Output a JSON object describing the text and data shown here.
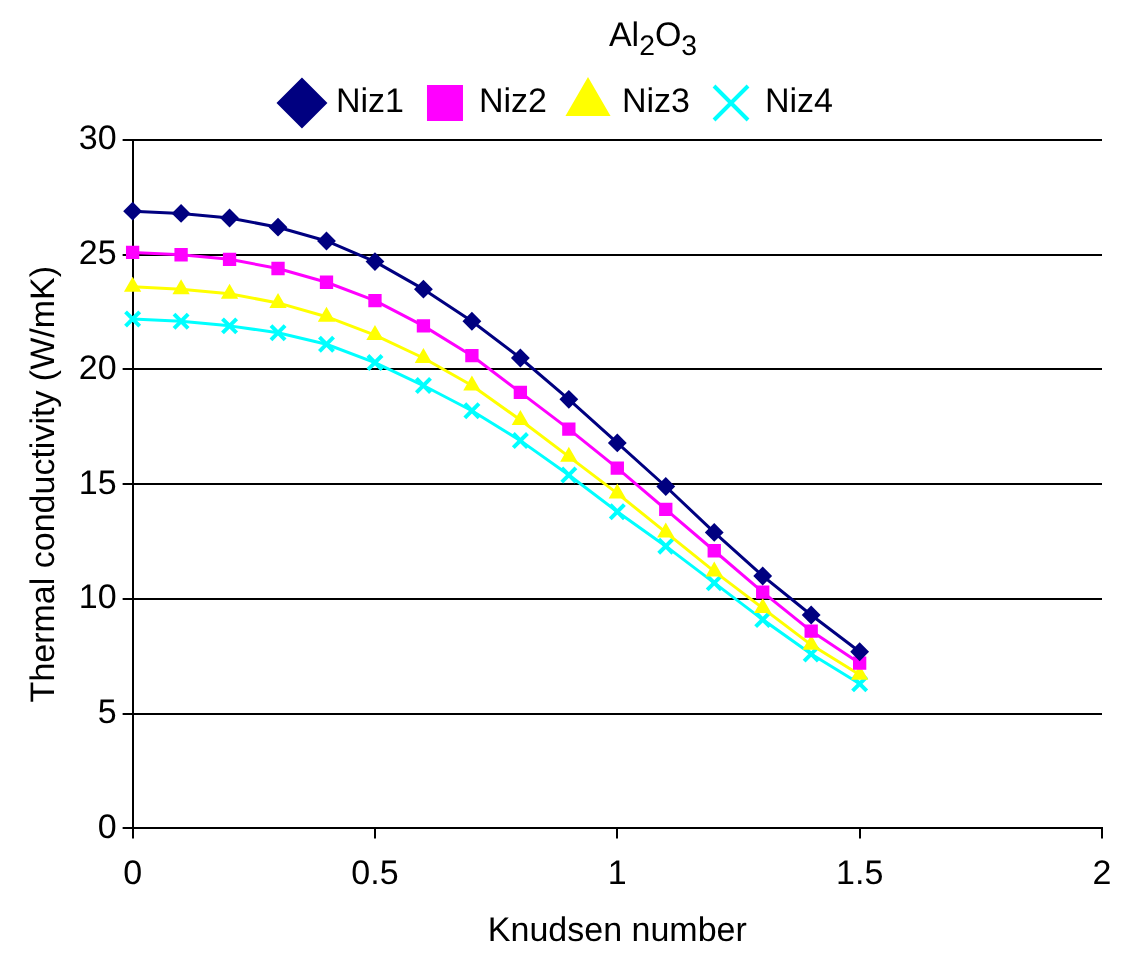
{
  "chart_data": {
    "type": "line",
    "title": "Al$_{2}$O$_{3}$",
    "xlabel": "Knudsen number",
    "ylabel": "Thermal conductivity (W/mK)",
    "x": [
      0,
      0.1,
      0.2,
      0.3,
      0.4,
      0.5,
      0.6,
      0.7,
      0.8,
      0.9,
      1.0,
      1.1,
      1.2,
      1.3,
      1.4,
      1.5
    ],
    "series": [
      {
        "name": "Niz1",
        "color": "#000080",
        "marker": "diamond",
        "values": [
          26.9,
          26.8,
          26.6,
          26.2,
          25.6,
          24.7,
          23.5,
          22.1,
          20.5,
          18.7,
          16.8,
          14.9,
          12.9,
          11.0,
          9.3,
          7.7
        ]
      },
      {
        "name": "Niz2",
        "color": "#ff00ff",
        "marker": "square",
        "values": [
          25.1,
          25.0,
          24.8,
          24.4,
          23.8,
          23.0,
          21.9,
          20.6,
          19.0,
          17.4,
          15.7,
          13.9,
          12.1,
          10.3,
          8.6,
          7.2
        ]
      },
      {
        "name": "Niz3",
        "color": "#ffff00",
        "marker": "triangle",
        "values": [
          23.6,
          23.5,
          23.3,
          22.9,
          22.3,
          21.5,
          20.5,
          19.3,
          17.8,
          16.2,
          14.6,
          12.9,
          11.2,
          9.6,
          8.0,
          6.7
        ]
      },
      {
        "name": "Niz4",
        "color": "#00ffff",
        "marker": "cross",
        "values": [
          22.2,
          22.1,
          21.9,
          21.6,
          21.1,
          20.3,
          19.3,
          18.2,
          16.9,
          15.4,
          13.8,
          12.3,
          10.7,
          9.1,
          7.6,
          6.3
        ]
      }
    ],
    "xlim": [
      0,
      2
    ],
    "xticks": [
      0,
      0.5,
      1,
      1.5,
      2
    ],
    "ylim": [
      0,
      30
    ],
    "yticks": [
      0,
      5,
      10,
      15,
      20,
      25,
      30
    ],
    "grid": "y",
    "legend": "top",
    "line_style": "solid"
  }
}
